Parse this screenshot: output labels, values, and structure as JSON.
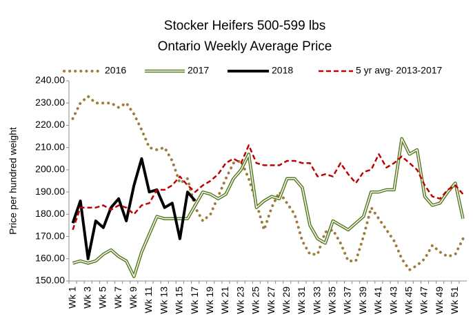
{
  "chart_data": {
    "type": "line",
    "title": "Stocker Heifers 500-599 lbs",
    "subtitle": "Ontario Weekly Average  Price",
    "y_label": "Price per hundred weight",
    "categories": [
      "Wk 1",
      null,
      "Wk 3",
      null,
      "Wk 5",
      null,
      "Wk 7",
      null,
      "Wk 9",
      null,
      "Wk 11",
      null,
      "Wk 13",
      null,
      "Wk 15",
      null,
      "Wk 17",
      null,
      "Wk 19",
      null,
      "Wk 21",
      null,
      "Wk 23",
      null,
      "Wk 25",
      null,
      "Wk 27",
      null,
      "Wk 29",
      null,
      "Wk 31",
      null,
      "Wk 33",
      null,
      "Wk 35",
      null,
      "Wk 37",
      null,
      "Wk 39",
      null,
      "Wk 41",
      null,
      "Wk 43",
      null,
      "Wk 45",
      null,
      "Wk 47",
      null,
      "Wk 49",
      null,
      "Wk 51",
      null
    ],
    "series": [
      {
        "name": "2016",
        "color": "#a07b3c",
        "style": "dotted",
        "values": [
          223,
          230,
          233,
          230,
          230,
          230,
          228,
          230,
          225,
          218,
          210,
          209,
          210,
          204,
          194,
          196,
          183,
          177,
          180,
          188,
          196,
          203,
          204,
          196,
          185,
          173,
          183,
          190,
          185,
          180,
          168,
          162,
          162,
          172,
          173,
          167,
          159,
          159,
          170,
          183,
          178,
          173,
          168,
          160,
          155,
          157,
          160,
          166,
          163,
          161,
          162,
          169
        ]
      },
      {
        "name": "2017",
        "color": "#5a7a22",
        "style": "double",
        "values": [
          158,
          159,
          158,
          159,
          162,
          164,
          161,
          159,
          152,
          163,
          171,
          179,
          178,
          178,
          178,
          178,
          184,
          190,
          189,
          187,
          189,
          196,
          200,
          207,
          183,
          186,
          188,
          187,
          196,
          196,
          192,
          175,
          169,
          167,
          177,
          175,
          173,
          176,
          179,
          190,
          190,
          191,
          191,
          214,
          207,
          209,
          188,
          184,
          185,
          190,
          194,
          178
        ]
      },
      {
        "name": "2018",
        "color": "#000000",
        "style": "solid",
        "values": [
          176,
          186,
          160,
          177,
          174,
          183,
          187,
          177,
          193,
          205,
          190,
          191,
          183,
          185,
          169,
          190,
          186,
          null,
          null,
          null,
          null,
          null,
          null,
          null,
          null,
          null,
          null,
          null,
          null,
          null,
          null,
          null,
          null,
          null,
          null,
          null,
          null,
          null,
          null,
          null,
          null,
          null,
          null,
          null,
          null,
          null,
          null,
          null,
          null,
          null,
          null,
          null
        ]
      },
      {
        "name": "5 yr avg- 2013-2017",
        "color": "#c00000",
        "style": "dashed",
        "values": [
          173,
          183,
          183,
          183,
          184,
          182,
          184,
          183,
          180,
          184,
          185,
          191,
          191,
          193,
          197,
          193,
          190,
          193,
          195,
          198,
          203,
          205,
          203,
          211,
          203,
          202,
          202,
          202,
          204,
          204,
          203,
          203,
          197,
          198,
          197,
          203,
          198,
          194,
          199,
          200,
          207,
          201,
          203,
          206,
          203,
          200,
          193,
          188,
          187,
          191,
          193,
          189
        ]
      }
    ],
    "ylim": [
      150,
      240
    ],
    "yticks": [
      {
        "value": 150,
        "label": "150.00"
      },
      {
        "value": 160,
        "label": "160.00"
      },
      {
        "value": 170,
        "label": "170.00"
      },
      {
        "value": 180,
        "label": "180.00"
      },
      {
        "value": 190,
        "label": "190.00"
      },
      {
        "value": 200,
        "label": "200.00"
      },
      {
        "value": 210,
        "label": "210.00"
      },
      {
        "value": 220,
        "label": "220.00"
      },
      {
        "value": 230,
        "label": "230.00"
      },
      {
        "value": 240,
        "label": "240.00"
      }
    ],
    "grid": false,
    "legend": "top"
  }
}
